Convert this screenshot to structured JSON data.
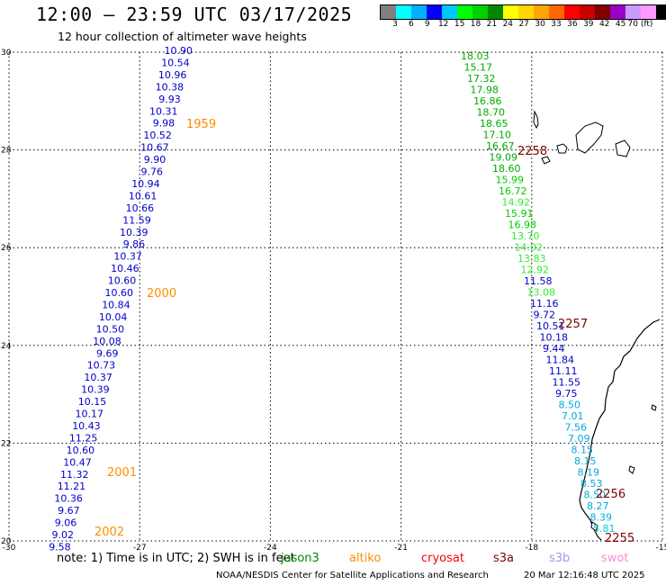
{
  "title": "12:00 – 23:59 UTC 03/17/2025",
  "subtitle": "12 hour collection of altimeter wave heights",
  "colorbar": {
    "colors": [
      "#7f7f7f",
      "#00ffff",
      "#00b0ff",
      "#0000ff",
      "#00c8ff",
      "#00ff00",
      "#00d000",
      "#008800",
      "#ffff00",
      "#ffd700",
      "#ffa500",
      "#ff6600",
      "#ff0000",
      "#c80000",
      "#800000",
      "#9900cc",
      "#cc99ff",
      "#ff99ff",
      "#000000"
    ],
    "labels": [
      "3",
      "6",
      "9",
      "12",
      "15",
      "18",
      "21",
      "24",
      "27",
      "30",
      "33",
      "36",
      "39",
      "42",
      "45",
      "70 (ft)"
    ]
  },
  "axes": {
    "lon_ticks": [
      "-30",
      "-27",
      "-24",
      "-21",
      "-18",
      "-15"
    ],
    "lat_ticks": [
      "30",
      "28",
      "26",
      "24",
      "22",
      "20"
    ]
  },
  "times": [
    {
      "label": "1959",
      "color": "#ff8c00"
    },
    {
      "label": "2000",
      "color": "#ff8c00"
    },
    {
      "label": "2001",
      "color": "#ff8c00"
    },
    {
      "label": "2002",
      "color": "#ff8c00"
    },
    {
      "label": "2258",
      "color": "#800000"
    },
    {
      "label": "2257",
      "color": "#800000"
    },
    {
      "label": "2256",
      "color": "#800000"
    },
    {
      "label": "2255",
      "color": "#800000"
    }
  ],
  "track_west": [
    "10.90",
    "10.54",
    "10.96",
    "10.38",
    "9.93",
    "10.31",
    "9.98",
    "10.52",
    "10.67",
    "9.90",
    "9.76",
    "10.94",
    "10.61",
    "10.66",
    "11.59",
    "10.39",
    "9.86",
    "10.37",
    "10.46",
    "10.60",
    "10.60",
    "10.84",
    "10.04",
    "10.50",
    "10.08",
    "9.69",
    "10.73",
    "10.37",
    "10.39",
    "10.15",
    "10.17",
    "10.43",
    "11.25",
    "10.60",
    "10.47",
    "11.32",
    "11.21",
    "10.36",
    "9.67",
    "9.06",
    "9.02",
    "9.58"
  ],
  "track_east": [
    {
      "v": "18.03",
      "c": "#00aa00"
    },
    {
      "v": "15.17",
      "c": "#00aa00"
    },
    {
      "v": "17.32",
      "c": "#00aa00"
    },
    {
      "v": "17.98",
      "c": "#00aa00"
    },
    {
      "v": "16.86",
      "c": "#00aa00"
    },
    {
      "v": "18.70",
      "c": "#00aa00"
    },
    {
      "v": "18.65",
      "c": "#00aa00"
    },
    {
      "v": "17.10",
      "c": "#00aa00"
    },
    {
      "v": "16.67",
      "c": "#00aa00"
    },
    {
      "v": "19.09",
      "c": "#00aa00"
    },
    {
      "v": "18.60",
      "c": "#00aa00"
    },
    {
      "v": "15.99",
      "c": "#00cc00"
    },
    {
      "v": "16.72",
      "c": "#00cc00"
    },
    {
      "v": "14.92",
      "c": "#33ee33"
    },
    {
      "v": "15.91",
      "c": "#00cc00"
    },
    {
      "v": "16.98",
      "c": "#00cc00"
    },
    {
      "v": "13.70",
      "c": "#33ee33"
    },
    {
      "v": "14.02",
      "c": "#33ee33"
    },
    {
      "v": "13.83",
      "c": "#33ee33"
    },
    {
      "v": "12.92",
      "c": "#33ee33"
    },
    {
      "v": "11.58",
      "c": "#0000cc"
    },
    {
      "v": "13.08",
      "c": "#33ee33"
    },
    {
      "v": "11.16",
      "c": "#0000cc"
    },
    {
      "v": "9.72",
      "c": "#0000cc"
    },
    {
      "v": "10.51",
      "c": "#0000cc"
    },
    {
      "v": "10.18",
      "c": "#0000cc"
    },
    {
      "v": "9.44",
      "c": "#0000cc"
    },
    {
      "v": "11.84",
      "c": "#0000cc"
    },
    {
      "v": "11.11",
      "c": "#0000cc"
    },
    {
      "v": "11.55",
      "c": "#0000cc"
    },
    {
      "v": "9.75",
      "c": "#0000cc"
    },
    {
      "v": "8.50",
      "c": "#00aadd"
    },
    {
      "v": "7.01",
      "c": "#00aadd"
    },
    {
      "v": "7.56",
      "c": "#00aadd"
    },
    {
      "v": "7.09",
      "c": "#00aadd"
    },
    {
      "v": "8.15",
      "c": "#00aadd"
    },
    {
      "v": "8.15",
      "c": "#00aadd"
    },
    {
      "v": "8.19",
      "c": "#00aadd"
    },
    {
      "v": "8.53",
      "c": "#00aadd"
    },
    {
      "v": "8.50",
      "c": "#00aadd"
    },
    {
      "v": "8.27",
      "c": "#00aadd"
    },
    {
      "v": "8.39",
      "c": "#00aadd"
    },
    {
      "v": "5.81",
      "c": "#00cccc"
    }
  ],
  "note": "note: 1) Time is in UTC; 2) SWH is in feet",
  "satellites": [
    {
      "name": "jason3",
      "color": "#008800"
    },
    {
      "name": "altiko",
      "color": "#ff8c00"
    },
    {
      "name": "cryosat",
      "color": "#ff0000"
    },
    {
      "name": "s3a",
      "color": "#800000"
    },
    {
      "name": "s3b",
      "color": "#b090ee"
    },
    {
      "name": "swot",
      "color": "#ff88dd"
    }
  ],
  "credit": "NOAA/NESDIS Center for Satellite Applications and Research",
  "timestamp": "20 Mar 12:16:48 UTC 2025"
}
